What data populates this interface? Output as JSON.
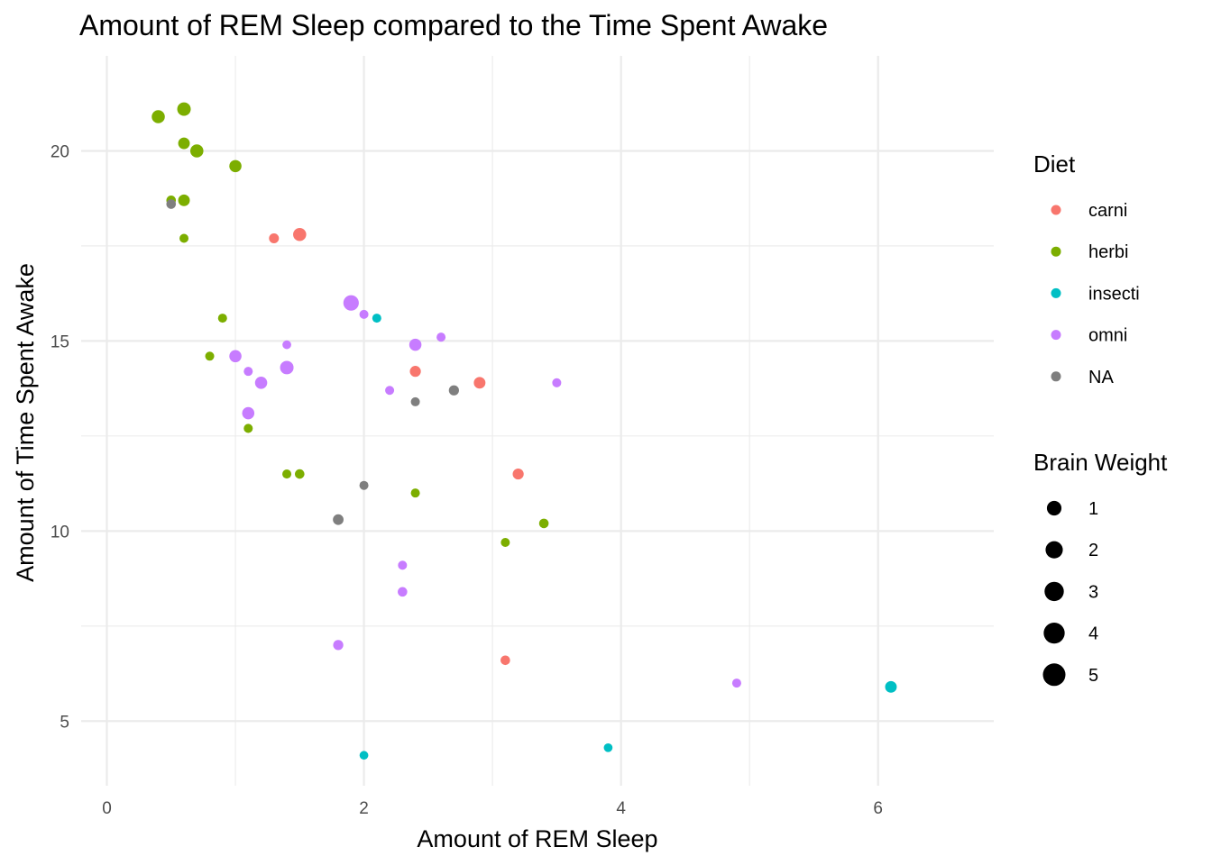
{
  "chart_data": {
    "type": "scatter",
    "title": "Amount of REM Sleep compared to the Time Spent Awake",
    "xlabel": "Amount of REM Sleep",
    "ylabel": "Amount of Time Spent Awake",
    "xlim": [
      -0.2,
      6.9
    ],
    "ylim": [
      3.3,
      22.5
    ],
    "x_ticks": [
      0,
      2,
      4,
      6
    ],
    "y_ticks": [
      5,
      10,
      15,
      20
    ],
    "x_minor": [
      1,
      3,
      5
    ],
    "y_minor": [
      7.5,
      12.5,
      17.5
    ],
    "grid": true,
    "legend_position": "right",
    "color_legend": {
      "title": "Diet",
      "entries": [
        {
          "label": "carni",
          "color": "#F8766D"
        },
        {
          "label": "herbi",
          "color": "#7CAE00"
        },
        {
          "label": "insecti",
          "color": "#00BFC4"
        },
        {
          "label": "omni",
          "color": "#C77CFF"
        },
        {
          "label": "NA",
          "color": "#7F7F7F"
        }
      ]
    },
    "size_legend": {
      "title": "Brain Weight",
      "entries": [
        {
          "label": "1",
          "value": 1
        },
        {
          "label": "2",
          "value": 2
        },
        {
          "label": "3",
          "value": 3
        },
        {
          "label": "4",
          "value": 4
        },
        {
          "label": "5",
          "value": 5
        }
      ]
    },
    "points": [
      {
        "x": 0.4,
        "y": 20.9,
        "diet": "herbi",
        "brain": 0.6
      },
      {
        "x": 0.6,
        "y": 21.1,
        "diet": "herbi",
        "brain": 0.7
      },
      {
        "x": 0.6,
        "y": 20.2,
        "diet": "herbi",
        "brain": 0.3
      },
      {
        "x": 0.7,
        "y": 20.0,
        "diet": "herbi",
        "brain": 0.6
      },
      {
        "x": 1.0,
        "y": 19.6,
        "diet": "herbi",
        "brain": 0.4
      },
      {
        "x": 0.5,
        "y": 18.7,
        "diet": "herbi",
        "brain": 0.05
      },
      {
        "x": 0.6,
        "y": 18.7,
        "diet": "herbi",
        "brain": 0.3
      },
      {
        "x": 0.5,
        "y": 18.6,
        "diet": "NA",
        "brain": 0.05
      },
      {
        "x": 0.6,
        "y": 17.7,
        "diet": "herbi",
        "brain": 0.02
      },
      {
        "x": 1.3,
        "y": 17.7,
        "diet": "carni",
        "brain": 0.08
      },
      {
        "x": 1.5,
        "y": 17.8,
        "diet": "carni",
        "brain": 0.6
      },
      {
        "x": 1.9,
        "y": 16.0,
        "diet": "omni",
        "brain": 1.3
      },
      {
        "x": 2.0,
        "y": 15.7,
        "diet": "omni",
        "brain": 0.02
      },
      {
        "x": 2.1,
        "y": 15.6,
        "diet": "insecti",
        "brain": 0.02
      },
      {
        "x": 0.9,
        "y": 15.6,
        "diet": "herbi",
        "brain": 0.02
      },
      {
        "x": 0.8,
        "y": 14.6,
        "diet": "herbi",
        "brain": 0.02
      },
      {
        "x": 1.0,
        "y": 14.6,
        "diet": "omni",
        "brain": 0.4
      },
      {
        "x": 1.4,
        "y": 14.9,
        "diet": "omni",
        "brain": 0.01
      },
      {
        "x": 1.1,
        "y": 14.2,
        "diet": "omni",
        "brain": 0.02
      },
      {
        "x": 1.4,
        "y": 14.3,
        "diet": "omni",
        "brain": 0.7
      },
      {
        "x": 1.2,
        "y": 13.9,
        "diet": "omni",
        "brain": 0.4
      },
      {
        "x": 1.1,
        "y": 13.1,
        "diet": "omni",
        "brain": 0.4
      },
      {
        "x": 1.1,
        "y": 12.7,
        "diet": "herbi",
        "brain": 0.02
      },
      {
        "x": 2.4,
        "y": 14.9,
        "diet": "omni",
        "brain": 0.4
      },
      {
        "x": 2.6,
        "y": 15.1,
        "diet": "omni",
        "brain": 0.02
      },
      {
        "x": 2.4,
        "y": 14.2,
        "diet": "carni",
        "brain": 0.2
      },
      {
        "x": 2.2,
        "y": 13.7,
        "diet": "omni",
        "brain": 0.02
      },
      {
        "x": 2.4,
        "y": 13.4,
        "diet": "NA",
        "brain": 0.02
      },
      {
        "x": 2.7,
        "y": 13.7,
        "diet": "NA",
        "brain": 0.1
      },
      {
        "x": 2.9,
        "y": 13.9,
        "diet": "carni",
        "brain": 0.3
      },
      {
        "x": 3.5,
        "y": 13.9,
        "diet": "omni",
        "brain": 0.02
      },
      {
        "x": 1.4,
        "y": 11.5,
        "diet": "herbi",
        "brain": 0.02
      },
      {
        "x": 1.5,
        "y": 11.5,
        "diet": "herbi",
        "brain": 0.05
      },
      {
        "x": 2.0,
        "y": 11.2,
        "diet": "NA",
        "brain": 0.02
      },
      {
        "x": 2.4,
        "y": 11.0,
        "diet": "herbi",
        "brain": 0.02
      },
      {
        "x": 3.2,
        "y": 11.5,
        "diet": "carni",
        "brain": 0.2
      },
      {
        "x": 1.8,
        "y": 10.3,
        "diet": "NA",
        "brain": 0.15
      },
      {
        "x": 3.4,
        "y": 10.2,
        "diet": "herbi",
        "brain": 0.05
      },
      {
        "x": 3.1,
        "y": 9.7,
        "diet": "herbi",
        "brain": 0.02
      },
      {
        "x": 2.3,
        "y": 9.1,
        "diet": "omni",
        "brain": 0.02
      },
      {
        "x": 2.3,
        "y": 8.4,
        "diet": "omni",
        "brain": 0.05
      },
      {
        "x": 1.8,
        "y": 7.0,
        "diet": "omni",
        "brain": 0.1
      },
      {
        "x": 3.1,
        "y": 6.6,
        "diet": "carni",
        "brain": 0.05
      },
      {
        "x": 4.9,
        "y": 6.0,
        "diet": "omni",
        "brain": 0.02
      },
      {
        "x": 6.1,
        "y": 5.9,
        "diet": "insecti",
        "brain": 0.3
      },
      {
        "x": 3.9,
        "y": 4.3,
        "diet": "insecti",
        "brain": 0.01
      },
      {
        "x": 2.0,
        "y": 4.1,
        "diet": "insecti",
        "brain": 0.01
      }
    ]
  }
}
